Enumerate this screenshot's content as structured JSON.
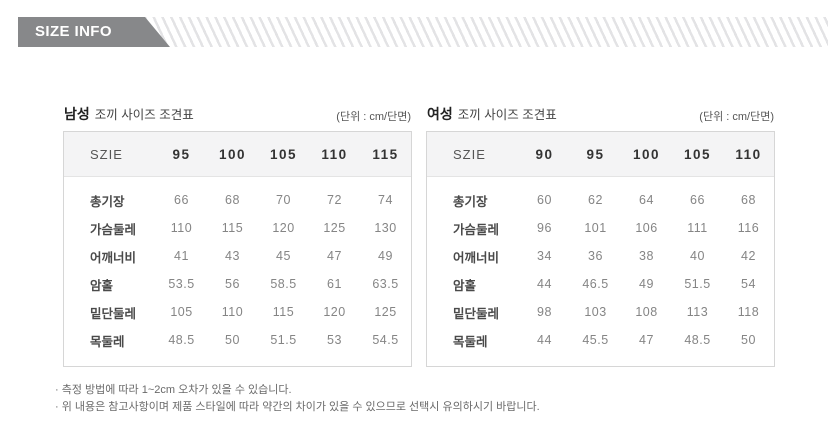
{
  "banner": {
    "label": "SIZE INFO"
  },
  "colors": {
    "banner_bg": "#87888a",
    "stripe": "#e3e3e5",
    "table_border": "#d6d6d6",
    "header_bg": "#f4f4f5"
  },
  "tables": [
    {
      "gender": "남성",
      "title": "조끼 사이즈 조견표",
      "unit": "(단위 : cm/단면)",
      "size_label": "SZIE",
      "sizes": [
        "95",
        "100",
        "105",
        "110",
        "115"
      ],
      "rows": [
        {
          "label": "총기장",
          "values": [
            "66",
            "68",
            "70",
            "72",
            "74"
          ]
        },
        {
          "label": "가슴둘레",
          "values": [
            "110",
            "115",
            "120",
            "125",
            "130"
          ]
        },
        {
          "label": "어깨너비",
          "values": [
            "41",
            "43",
            "45",
            "47",
            "49"
          ]
        },
        {
          "label": "암홀",
          "values": [
            "53.5",
            "56",
            "58.5",
            "61",
            "63.5"
          ]
        },
        {
          "label": "밑단둘레",
          "values": [
            "105",
            "110",
            "115",
            "120",
            "125"
          ]
        },
        {
          "label": "목둘레",
          "values": [
            "48.5",
            "50",
            "51.5",
            "53",
            "54.5"
          ]
        }
      ]
    },
    {
      "gender": "여성",
      "title": "조끼 사이즈 조견표",
      "unit": "(단위 : cm/단면)",
      "size_label": "SZIE",
      "sizes": [
        "90",
        "95",
        "100",
        "105",
        "110"
      ],
      "rows": [
        {
          "label": "총기장",
          "values": [
            "60",
            "62",
            "64",
            "66",
            "68"
          ]
        },
        {
          "label": "가슴둘레",
          "values": [
            "96",
            "101",
            "106",
            "111",
            "116"
          ]
        },
        {
          "label": "어깨너비",
          "values": [
            "34",
            "36",
            "38",
            "40",
            "42"
          ]
        },
        {
          "label": "암홀",
          "values": [
            "44",
            "46.5",
            "49",
            "51.5",
            "54"
          ]
        },
        {
          "label": "밑단둘레",
          "values": [
            "98",
            "103",
            "108",
            "113",
            "118"
          ]
        },
        {
          "label": "목둘레",
          "values": [
            "44",
            "45.5",
            "47",
            "48.5",
            "50"
          ]
        }
      ]
    }
  ],
  "notes": [
    "· 측정 방법에 따라 1~2cm 오차가 있을 수 있습니다.",
    "· 위 내용은 참고사항이며 제품 스타일에 따라 약간의 차이가 있을 수 있으므로 선택시 유의하시기 바랍니다."
  ]
}
